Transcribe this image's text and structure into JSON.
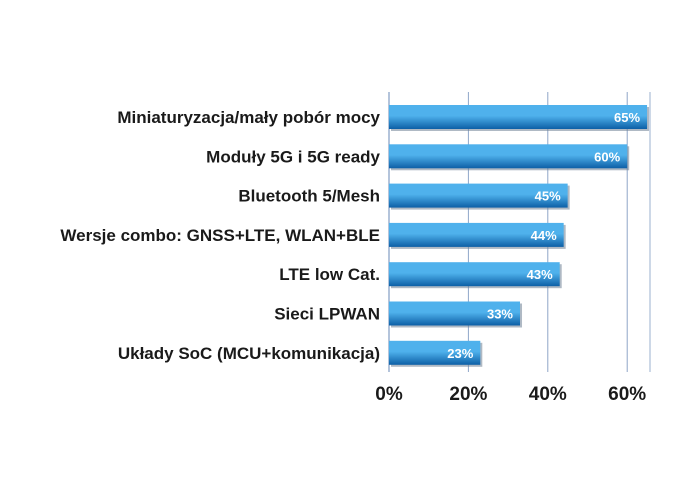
{
  "chart_data": {
    "type": "bar",
    "orientation": "horizontal",
    "categories": [
      "Miniaturyzacja/mały pobór mocy",
      "Moduły 5G i 5G ready",
      "Bluetooth 5/Mesh",
      "Wersje combo: GNSS+LTE, WLAN+BLE",
      "LTE low Cat.",
      "Sieci LPWAN",
      "Układy SoC (MCU+komunikacja)"
    ],
    "values": [
      65,
      60,
      45,
      44,
      43,
      33,
      23
    ],
    "value_labels": [
      "65%",
      "60%",
      "45%",
      "44%",
      "43%",
      "33%",
      "23%"
    ],
    "xlim": [
      0,
      65
    ],
    "xticks": [
      0,
      20,
      40,
      60
    ],
    "xtick_labels": [
      "0%",
      "20%",
      "40%",
      "60%"
    ],
    "grid": true,
    "title": "",
    "xlabel": "",
    "ylabel": "",
    "colors": {
      "bar_dark": "#0d5fa6",
      "bar_light": "#4fb1ec",
      "grid": "#8fa6c8",
      "plot_border": "#9bb0cf"
    }
  }
}
